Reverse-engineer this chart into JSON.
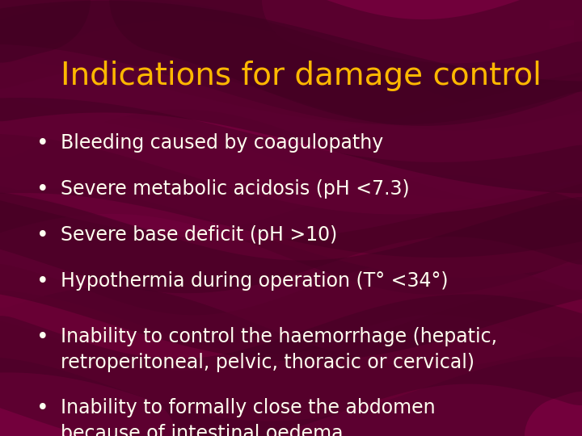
{
  "title": "Indications for damage control",
  "title_color": "#FFB800",
  "title_fontsize": 28,
  "bullet_color": "#FFFFF0",
  "bullet_fontsize": 17,
  "bg_color": "#5C0030",
  "bullets": [
    "Bleeding caused by coagulopathy",
    "Severe metabolic acidosis (pH <7.3)",
    "Severe base deficit (pH >10)",
    "Hypothermia during operation (T° <34°)",
    "Inability to control the haemorrhage (hepatic,\nretroperitoneal, pelvic, thoracic or cervical)",
    "Inability to formally close the abdomen\nbecause of intestinal oedema"
  ],
  "wave_colors": [
    "#7A003F",
    "#6B0038",
    "#8C0048",
    "#4A0025",
    "#720040"
  ],
  "fig_width": 7.2,
  "fig_height": 5.4,
  "dpi": 100
}
